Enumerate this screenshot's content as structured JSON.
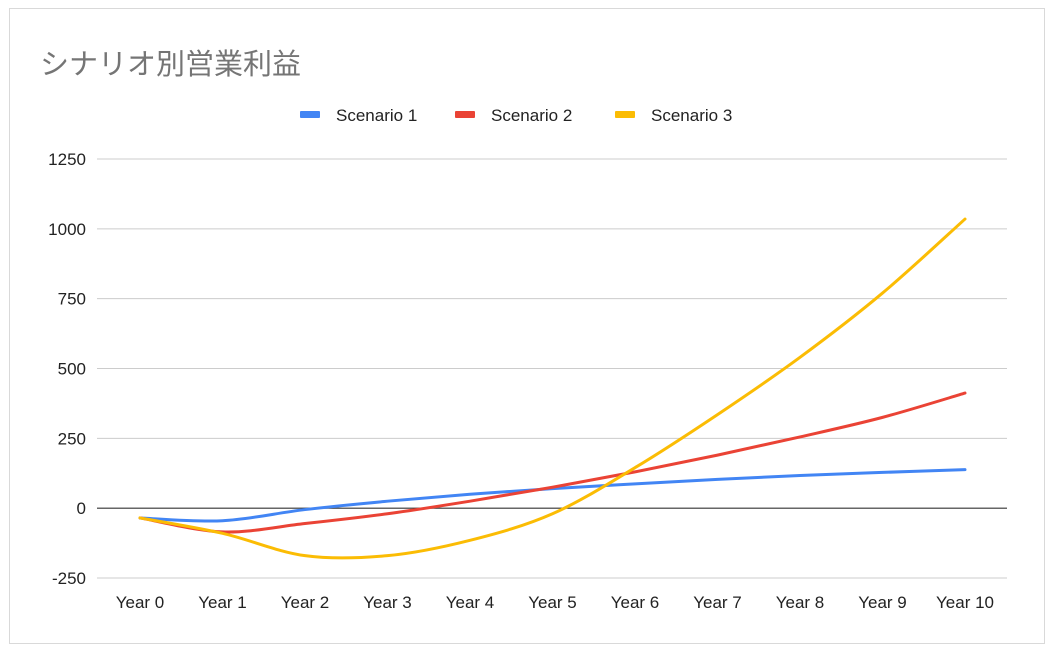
{
  "chart_data": {
    "type": "line",
    "title": "シナリオ別営業利益",
    "xlabel": "",
    "ylabel": "",
    "categories": [
      "Year 0",
      "Year 1",
      "Year 2",
      "Year 3",
      "Year 4",
      "Year 5",
      "Year 6",
      "Year 7",
      "Year 8",
      "Year 9",
      "Year 10"
    ],
    "series": [
      {
        "name": "Scenario 1",
        "color": "#4285f4",
        "values": [
          -35,
          -45,
          -5,
          25,
          50,
          70,
          87,
          103,
          117,
          128,
          138
        ]
      },
      {
        "name": "Scenario 2",
        "color": "#ea4335",
        "values": [
          -35,
          -85,
          -55,
          -20,
          25,
          75,
          130,
          190,
          255,
          325,
          412
        ]
      },
      {
        "name": "Scenario 3",
        "color": "#fbbc04",
        "values": [
          -35,
          -90,
          -170,
          -170,
          -115,
          -20,
          145,
          335,
          540,
          770,
          1035
        ]
      }
    ],
    "yticks": [
      "1250",
      "1000",
      "750",
      "500",
      "250",
      "0",
      "-250"
    ],
    "ylim": [
      -250,
      1250
    ],
    "grid": true,
    "legend_position": "top",
    "smooth": true
  }
}
